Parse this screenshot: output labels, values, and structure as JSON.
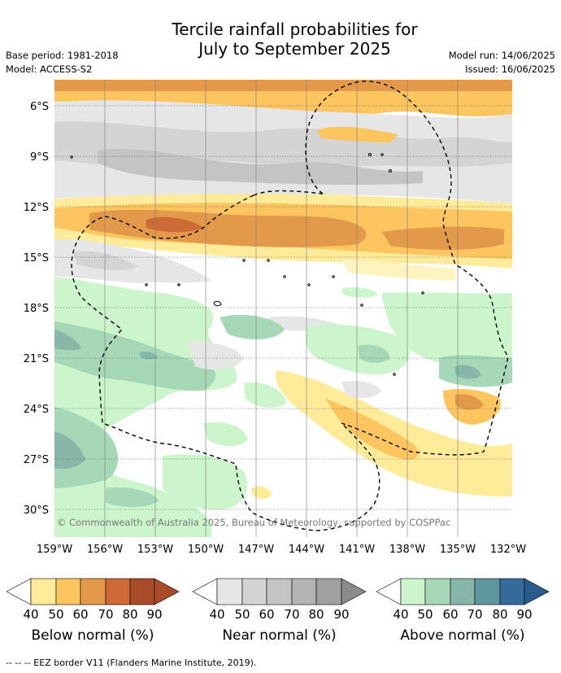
{
  "title_line1": "Tercile rainfall probabilities for",
  "title_line2": "July to September 2025",
  "base_period": "Base period: 1981-2018",
  "model": "Model: ACCESS-S2",
  "model_run": "Model run: 14/06/2025",
  "issued": "Issued: 16/06/2025",
  "copyright": "© Commonwealth of Australia 2025, Bureau of Meteorology, supported by COSPPac",
  "lat_labels": [
    "6°S",
    "9°S",
    "12°S",
    "15°S",
    "18°S",
    "21°S",
    "24°S",
    "27°S",
    "30°S"
  ],
  "lon_labels": [
    "159°W",
    "156°W",
    "153°W",
    "150°W",
    "147°W",
    "144°W",
    "141°W",
    "138°W",
    "135°W",
    "132°W"
  ],
  "legends": [
    {
      "label": "Below normal (%)",
      "colors": [
        "#ffeb99",
        "#fcc560",
        "#e29a4a",
        "#cd6a35",
        "#a94a28",
        "#a94a28"
      ]
    },
    {
      "label": "Near normal (%)",
      "colors": [
        "#e6e6e6",
        "#d4d4d4",
        "#c4c4c4",
        "#b4b4b4",
        "#a0a0a0",
        "#8a8a8a"
      ]
    },
    {
      "label": "Above normal (%)",
      "colors": [
        "#ccf5cc",
        "#a6d8b8",
        "#86b7a8",
        "#5d97a0",
        "#356b9a",
        "#285c8f"
      ]
    }
  ],
  "legend_ticks": [
    "40",
    "50",
    "60",
    "70",
    "80",
    "90"
  ],
  "footnote": "--  --  -- EEZ border V11 (Flanders Marine Institute, 2019)."
}
